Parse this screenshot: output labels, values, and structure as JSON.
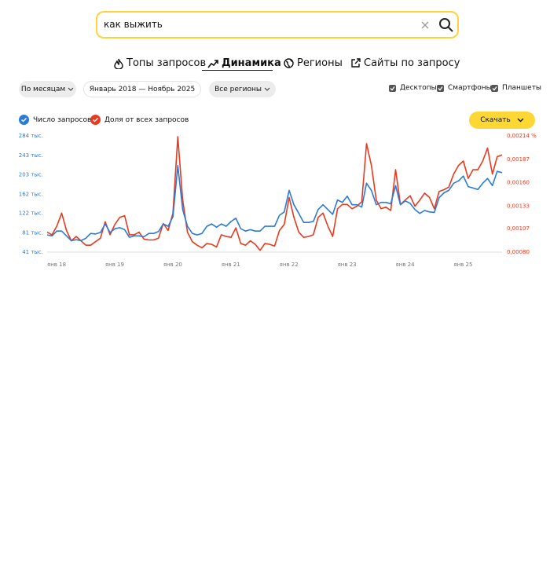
{
  "search": {
    "query": "как выжить"
  },
  "tabs": [
    "Топы запросов",
    "Динамика",
    "Регионы",
    "Сайты по запросу"
  ],
  "filters": {
    "period": "По месяцам",
    "range": "Январь 2018 — Ноябрь 2025",
    "region": "Все регионы"
  },
  "devices": [
    "Десктопы",
    "Смартфоны",
    "Планшеты"
  ],
  "download": "Скачать",
  "chart_data": {
    "type": "line",
    "categories": [
      "янв 18",
      null,
      null,
      null,
      null,
      null,
      null,
      null,
      null,
      null,
      null,
      null,
      "янв 19",
      null,
      null,
      null,
      null,
      null,
      null,
      null,
      null,
      null,
      null,
      null,
      "янв 20",
      null,
      null,
      null,
      null,
      null,
      null,
      null,
      null,
      null,
      null,
      null,
      "янв 21",
      null,
      null,
      null,
      null,
      null,
      null,
      null,
      null,
      null,
      null,
      null,
      "янв 22",
      null,
      null,
      null,
      null,
      null,
      null,
      null,
      null,
      null,
      null,
      null,
      "янв 23",
      null,
      null,
      null,
      null,
      null,
      null,
      null,
      null,
      null,
      null,
      null,
      "янв 24",
      null,
      null,
      null,
      null,
      null,
      null,
      null,
      null,
      null,
      null,
      null,
      "янв 25",
      null,
      null,
      null,
      null,
      null,
      null,
      null,
      null,
      null,
      null
    ],
    "series": [
      {
        "name": "Число запросов",
        "color": "#2b7bd6",
        "values": [
          77000,
          75000,
          85000,
          85000,
          75000,
          65000,
          67000,
          65000,
          70000,
          80000,
          79000,
          82000,
          100000,
          82000,
          90000,
          92000,
          88000,
          72000,
          75000,
          75000,
          73000,
          80000,
          80000,
          84000,
          100000,
          95000,
          115000,
          222000,
          130000,
          95000,
          80000,
          77000,
          80000,
          95000,
          100000,
          93000,
          100000,
          95000,
          105000,
          112000,
          90000,
          85000,
          88000,
          85000,
          85000,
          95000,
          95000,
          95000,
          118000,
          125000,
          170000,
          140000,
          122000,
          103000,
          103000,
          105000,
          130000,
          140000,
          130000,
          120000,
          150000,
          145000,
          158000,
          140000,
          140000,
          135000,
          185000,
          170000,
          140000,
          145000,
          145000,
          142000,
          180000,
          140000,
          148000,
          143000,
          130000,
          122000,
          128000,
          125000,
          124000,
          155000,
          165000,
          170000,
          185000,
          190000,
          200000,
          178000,
          175000,
          172000,
          185000,
          195000,
          180000,
          210000,
          207000
        ]
      },
      {
        "name": "Доля от всех запросов",
        "color": "#e83a1f",
        "axis": "y2",
        "values": [
          0.00103,
          0.001,
          0.0011,
          0.00125,
          0.00105,
          0.00093,
          0.00098,
          0.00093,
          0.00088,
          0.00088,
          0.00092,
          0.00096,
          0.00115,
          0.001,
          0.00112,
          0.0012,
          0.00122,
          0.001,
          0.001,
          0.00103,
          0.00095,
          0.00094,
          0.00094,
          0.00096,
          0.00113,
          0.00105,
          0.00125,
          0.00213,
          0.0014,
          0.00103,
          0.00092,
          0.00088,
          0.00085,
          0.0009,
          0.00089,
          0.00086,
          0.001,
          0.00098,
          0.00097,
          0.00108,
          0.0009,
          0.00088,
          0.00093,
          0.00089,
          0.00082,
          0.0009,
          0.00089,
          0.00087,
          0.00105,
          0.00112,
          0.00143,
          0.0012,
          0.00103,
          0.00097,
          0.00098,
          0.001,
          0.0012,
          0.00125,
          0.0011,
          0.00098,
          0.0013,
          0.00135,
          0.00135,
          0.0013,
          0.00133,
          0.00138,
          0.00205,
          0.0018,
          0.0014,
          0.0013,
          0.00132,
          0.00128,
          0.00175,
          0.00135,
          0.0014,
          0.00145,
          0.00133,
          0.0014,
          0.00148,
          0.00143,
          0.0013,
          0.0015,
          0.00152,
          0.00155,
          0.0017,
          0.0018,
          0.00185,
          0.00165,
          0.00175,
          0.00175,
          0.00185,
          0.002,
          0.0017,
          0.0019,
          0.00192
        ]
      }
    ],
    "ylim": [
      41000,
      284000
    ],
    "yticks": [
      {
        "value": 41000,
        "label": "41 тыс."
      },
      {
        "value": 81000,
        "label": "81 тыс."
      },
      {
        "value": 122000,
        "label": "122 тыс."
      },
      {
        "value": 162000,
        "label": "162 тыс."
      },
      {
        "value": 203000,
        "label": "203 тыс."
      },
      {
        "value": 243000,
        "label": "243 тыс."
      },
      {
        "value": 284000,
        "label": "284 тыс."
      }
    ],
    "y2lim": [
      0.0008,
      0.00214
    ],
    "y2ticks": [
      {
        "value": 0.0008,
        "label": "0,00080"
      },
      {
        "value": 0.00107,
        "label": "0,00107"
      },
      {
        "value": 0.00133,
        "label": "0,00133"
      },
      {
        "value": 0.0016,
        "label": "0,00160"
      },
      {
        "value": 0.00187,
        "label": "0,00187"
      },
      {
        "value": 0.00214,
        "label": "0,00214 %"
      }
    ],
    "grid": false
  }
}
